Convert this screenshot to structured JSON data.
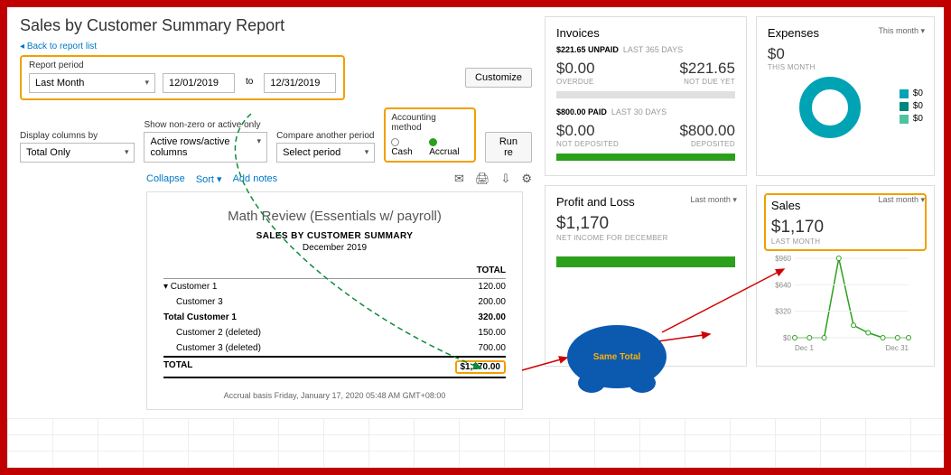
{
  "page": {
    "title": "Sales by Customer Summary Report",
    "back_link": "Back to report list"
  },
  "filters": {
    "report_period_label": "Report period",
    "period_select": "Last Month",
    "date_from": "12/01/2019",
    "date_to": "12/31/2019",
    "to_word": "to",
    "display_columns_label": "Display columns by",
    "display_columns_value": "Total Only",
    "show_nonzero_label": "Show non-zero or active only",
    "show_nonzero_value": "Active rows/active columns",
    "compare_label": "Compare another period",
    "compare_value": "Select period",
    "accounting_label": "Accounting method",
    "cash_label": "Cash",
    "accrual_label": "Accrual",
    "customize_btn": "Customize",
    "run_btn": "Run re"
  },
  "toolbar": {
    "collapse": "Collapse",
    "sort": "Sort",
    "addnotes": "Add notes"
  },
  "report": {
    "company": "Math Review (Essentials w/ payroll)",
    "heading": "SALES BY CUSTOMER SUMMARY",
    "period": "December 2019",
    "col_total": "TOTAL",
    "rows": [
      {
        "label": "Customer 1",
        "value": "120.00",
        "indent": 0,
        "caret": true
      },
      {
        "label": "Customer 3",
        "value": "200.00",
        "indent": 1
      },
      {
        "label": "Total Customer 1",
        "value": "320.00",
        "indent": 0,
        "bold": true
      },
      {
        "label": "Customer 2 (deleted)",
        "value": "150.00",
        "indent": 1
      },
      {
        "label": "Customer 3 (deleted)",
        "value": "700.00",
        "indent": 1
      }
    ],
    "total_label": "TOTAL",
    "total_value": "$1,170.00",
    "footer": "Accrual basis  Friday, January 17, 2020  05:48 AM GMT+08:00"
  },
  "invoices": {
    "title": "Invoices",
    "unpaid_amt": "$221.65 UNPAID",
    "unpaid_period": "LAST 365 DAYS",
    "overdue_amt": "$0.00",
    "overdue_label": "OVERDUE",
    "notdue_amt": "$221.65",
    "notdue_label": "NOT DUE YET",
    "paid_amt": "$800.00 PAID",
    "paid_period": "LAST 30 DAYS",
    "notdep_amt": "$0.00",
    "notdep_label": "NOT DEPOSITED",
    "dep_amt": "$800.00",
    "dep_label": "DEPOSITED"
  },
  "expenses": {
    "title": "Expenses",
    "period": "This month",
    "amount": "$0",
    "sub": "THIS MONTH",
    "legend": [
      {
        "color": "#00a3b4",
        "text": "$0"
      },
      {
        "color": "#00857f",
        "text": "$0"
      },
      {
        "color": "#4fc3a0",
        "text": "$0"
      }
    ]
  },
  "profitloss": {
    "title": "Profit and Loss",
    "period": "Last month",
    "amount": "$1,170",
    "sub": "NET INCOME FOR DECEMBER"
  },
  "sales": {
    "title": "Sales",
    "period": "Last month",
    "amount": "$1,170",
    "sub": "LAST MONTH",
    "chart": {
      "y_ticks": [
        "$960",
        "$640",
        "$320",
        "$0"
      ],
      "x_labels": [
        "Dec 1",
        "Dec 31"
      ],
      "points": [
        [
          0,
          0
        ],
        [
          4,
          0
        ],
        [
          8,
          0
        ],
        [
          12,
          960
        ],
        [
          16,
          150
        ],
        [
          20,
          60
        ],
        [
          24,
          0
        ],
        [
          28,
          0
        ],
        [
          31,
          0
        ]
      ],
      "line_color": "#2ca01c"
    }
  },
  "annotation": {
    "bubble": "Same Total"
  }
}
